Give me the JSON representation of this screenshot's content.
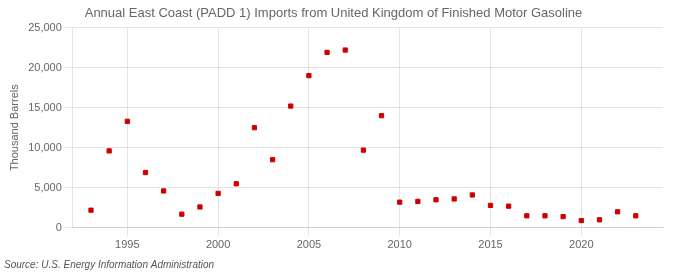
{
  "chart_data": {
    "type": "scatter",
    "title": "Annual East Coast (PADD 1) Imports from United Kingdom of Finished Motor Gasoline",
    "y_label": "Thousand Barrels",
    "annotations": [
      "Source: U.S. Energy Information Administration"
    ],
    "x": [
      1993,
      1994,
      1995,
      1996,
      1997,
      1998,
      1999,
      2000,
      2001,
      2002,
      2003,
      2004,
      2005,
      2006,
      2007,
      2008,
      2009,
      2010,
      2011,
      2012,
      2013,
      2014,
      2015,
      2016,
      2017,
      2018,
      2019,
      2020,
      2021,
      2022,
      2023
    ],
    "values": [
      2200,
      9600,
      13300,
      6900,
      4600,
      1700,
      2600,
      4300,
      5500,
      12500,
      8500,
      15200,
      19000,
      21900,
      22200,
      9700,
      14000,
      3200,
      3300,
      3500,
      3600,
      4100,
      2800,
      2700,
      1500,
      1500,
      1400,
      900,
      1000,
      2000,
      1500
    ],
    "color": "#cc0000",
    "marker": "square",
    "xlim": [
      1992,
      2024.5
    ],
    "xticks": [
      1995,
      2000,
      2005,
      2010,
      2015,
      2020
    ],
    "ylim": [
      0,
      25000
    ],
    "yticks": [
      0,
      {
        "value": 5000,
        "label": "5,000"
      },
      {
        "value": 10000,
        "label": "10,000"
      },
      {
        "value": 15000,
        "label": "15,000"
      },
      {
        "value": 20000,
        "label": "20,000"
      },
      {
        "value": 25000,
        "label": "25,000"
      }
    ],
    "grid": true
  }
}
